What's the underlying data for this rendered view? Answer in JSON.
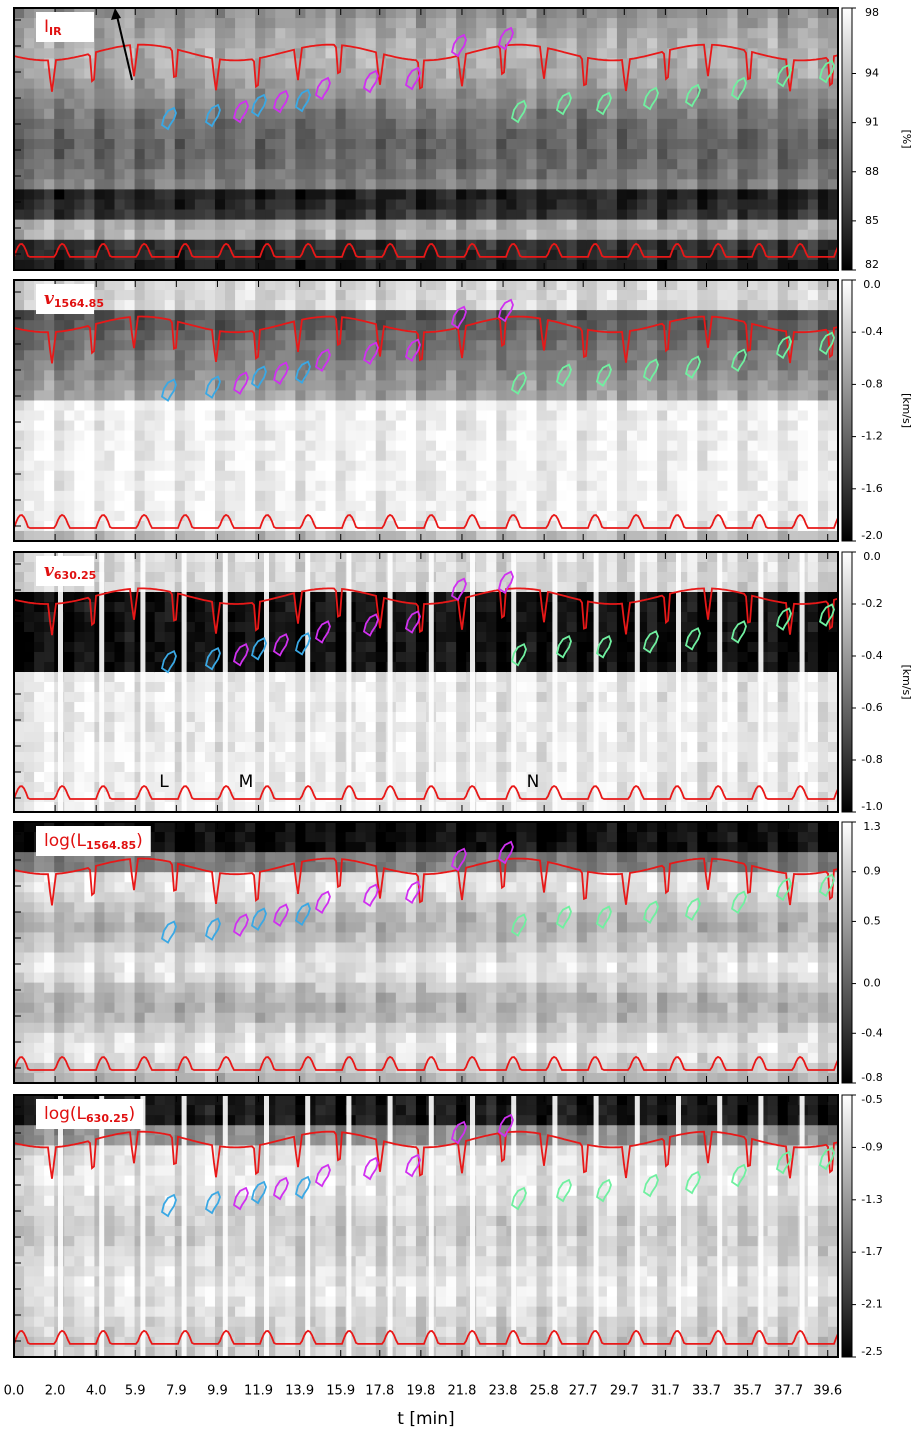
{
  "chart_data": [
    {
      "type": "heatmap",
      "title": [
        "I",
        "IR"
      ],
      "colorbar_label": "[%]",
      "clim": [
        82,
        98
      ],
      "cticks": [
        98,
        94,
        91,
        88,
        85,
        82
      ]
    },
    {
      "type": "heatmap",
      "title": [
        "v",
        "1564.85"
      ],
      "colorbar_label": "[km/s]",
      "clim": [
        -2,
        0
      ],
      "cticks": [
        {
          "value": 0,
          "label": "0.0"
        },
        -0.4,
        -0.8,
        -1.2,
        -1.6,
        {
          "value": -2,
          "label": "-2.0"
        }
      ]
    },
    {
      "type": "heatmap",
      "title": [
        "v",
        "630.25"
      ],
      "colorbar_label": "[km/s]",
      "clim": [
        -1,
        0
      ],
      "cticks": [
        {
          "value": 0,
          "label": "0.0"
        },
        -0.2,
        -0.4,
        -0.6,
        -0.8,
        {
          "value": -1,
          "label": "-1.0"
        }
      ],
      "annotations": [
        {
          "text": "L",
          "color": "#3aa8e4"
        },
        {
          "text": "M",
          "color": "#d030f0"
        },
        {
          "text": "N",
          "color": "#70f0a0"
        }
      ]
    },
    {
      "type": "heatmap",
      "title": [
        "log(L",
        "1564.85",
        ")"
      ],
      "clim": [
        -0.8,
        1.3
      ],
      "cticks": [
        1.3,
        0.9,
        0.5,
        {
          "value": 0,
          "label": "0.0"
        },
        -0.4,
        -0.8
      ]
    },
    {
      "type": "heatmap",
      "title": [
        "log(L",
        "630.25",
        ")"
      ],
      "clim": [
        -2.5,
        -0.5
      ],
      "cticks": [
        -0.5,
        -0.9,
        -1.3,
        -1.7,
        -2.1,
        -2.5
      ],
      "xlabel": "t [min]",
      "xlim": [
        0,
        40.1
      ],
      "xticks": [
        {
          "value": 0,
          "label": "0.0"
        },
        {
          "value": 2,
          "label": "2.0"
        },
        {
          "value": 4,
          "label": "4.0"
        },
        5.9,
        7.9,
        9.9,
        11.9,
        13.9,
        15.9,
        17.8,
        19.8,
        21.8,
        23.8,
        25.8,
        27.7,
        29.7,
        31.7,
        33.7,
        35.7,
        37.7,
        39.6
      ]
    }
  ]
}
